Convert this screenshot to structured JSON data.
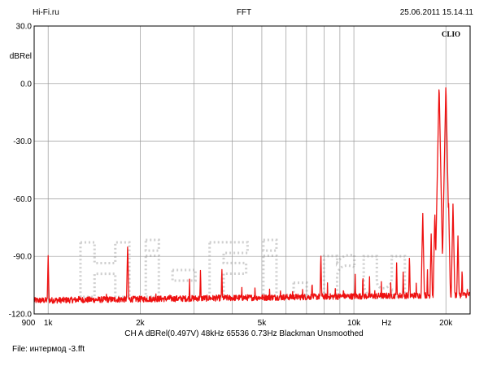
{
  "header": {
    "left": "Hi-Fi.ru",
    "center": "FFT",
    "right": "25.06.2011 15.14.11"
  },
  "brand": "CLIO",
  "watermark": "Hi-Fi.ru",
  "footer": {
    "info": "CH A  dBRel(0.497V)  48kHz  65536  0.73Hz  Blackman  Unsmoothed",
    "file": "File: интермод -3.fft"
  },
  "colors": {
    "trace": "#ee1111",
    "grid": "#999999",
    "watermark": "#cfcfcf"
  },
  "chart_data": {
    "type": "line",
    "title": "FFT",
    "xlabel": "Hz",
    "ylabel": "dBRel",
    "xscale": "log",
    "xlim": [
      900,
      24000
    ],
    "ylim": [
      -120,
      30
    ],
    "grid": true,
    "y_ticks": [
      "30.0",
      "0.0",
      "-30.0",
      "-60.0",
      "-90.0",
      "-120.0"
    ],
    "y_tick_values": [
      30,
      0,
      -30,
      -60,
      -90,
      -120
    ],
    "x_ticks": [
      {
        "label": "900",
        "value": 900
      },
      {
        "label": "1k",
        "value": 1000
      },
      {
        "label": "2k",
        "value": 2000
      },
      {
        "label": "5k",
        "value": 5000
      },
      {
        "label": "10k",
        "value": 10000
      },
      {
        "label": "Hz",
        "value": 12800
      },
      {
        "label": "20k",
        "value": 20000
      }
    ],
    "x_grid": [
      1000,
      2000,
      3000,
      4000,
      5000,
      6000,
      7000,
      8000,
      9000,
      10000,
      20000
    ],
    "noise_floor": -113,
    "series": [
      {
        "peaks": [
          [
            1000,
            -89
          ],
          [
            1260,
            -107
          ],
          [
            1550,
            -108
          ],
          [
            1820,
            -83
          ],
          [
            2250,
            -107
          ],
          [
            2500,
            -107
          ],
          [
            2900,
            -101
          ],
          [
            3150,
            -96
          ],
          [
            3700,
            -95
          ],
          [
            4300,
            -105
          ],
          [
            4750,
            -104
          ],
          [
            5300,
            -107
          ],
          [
            5750,
            -106
          ],
          [
            6300,
            -106
          ],
          [
            6800,
            -105
          ],
          [
            7300,
            -101
          ],
          [
            7800,
            -88
          ],
          [
            8200,
            -103
          ],
          [
            8700,
            -104
          ],
          [
            9250,
            -104
          ],
          [
            10100,
            -99
          ],
          [
            10700,
            -98
          ],
          [
            11250,
            -100
          ],
          [
            11700,
            -105
          ],
          [
            12300,
            -103
          ],
          [
            13200,
            -103
          ],
          [
            13800,
            -93
          ],
          [
            14500,
            -97
          ],
          [
            15200,
            -89
          ],
          [
            16000,
            -103
          ],
          [
            16800,
            -67
          ],
          [
            17400,
            -96
          ],
          [
            17900,
            -78
          ],
          [
            18400,
            -66
          ],
          [
            19000,
            0
          ],
          [
            19600,
            -85
          ],
          [
            20000,
            0
          ],
          [
            20400,
            -60
          ],
          [
            21100,
            -62
          ],
          [
            21900,
            -79
          ],
          [
            22600,
            -95
          ],
          [
            23500,
            -107
          ]
        ]
      }
    ]
  }
}
